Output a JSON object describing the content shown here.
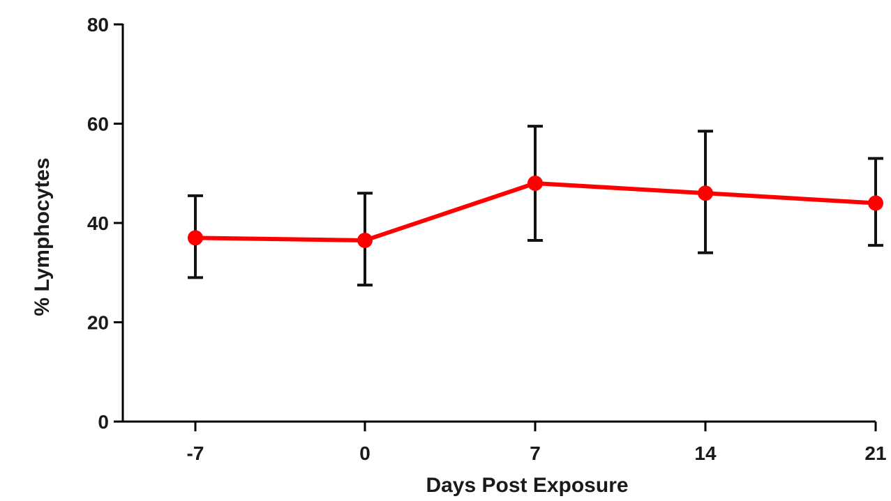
{
  "chart_data": {
    "type": "line",
    "title": "",
    "xlabel": "Days Post Exposure",
    "ylabel": "% Lymphocytes",
    "x": [
      -7,
      0,
      7,
      14,
      21
    ],
    "x_tick_labels": [
      "-7",
      "0",
      "7",
      "14",
      "21"
    ],
    "y_ticks": [
      0,
      20,
      40,
      60,
      80
    ],
    "y_tick_labels": [
      "0",
      "20",
      "40",
      "60",
      "80"
    ],
    "ylim": [
      0,
      80
    ],
    "grid": false,
    "series": [
      {
        "values": [
          37,
          36.5,
          48,
          46,
          44
        ],
        "error_low": [
          29,
          27.5,
          36.5,
          34,
          35.5
        ],
        "error_high": [
          45.5,
          46,
          59.5,
          58.5,
          53
        ],
        "color": "#ff0000"
      }
    ]
  }
}
